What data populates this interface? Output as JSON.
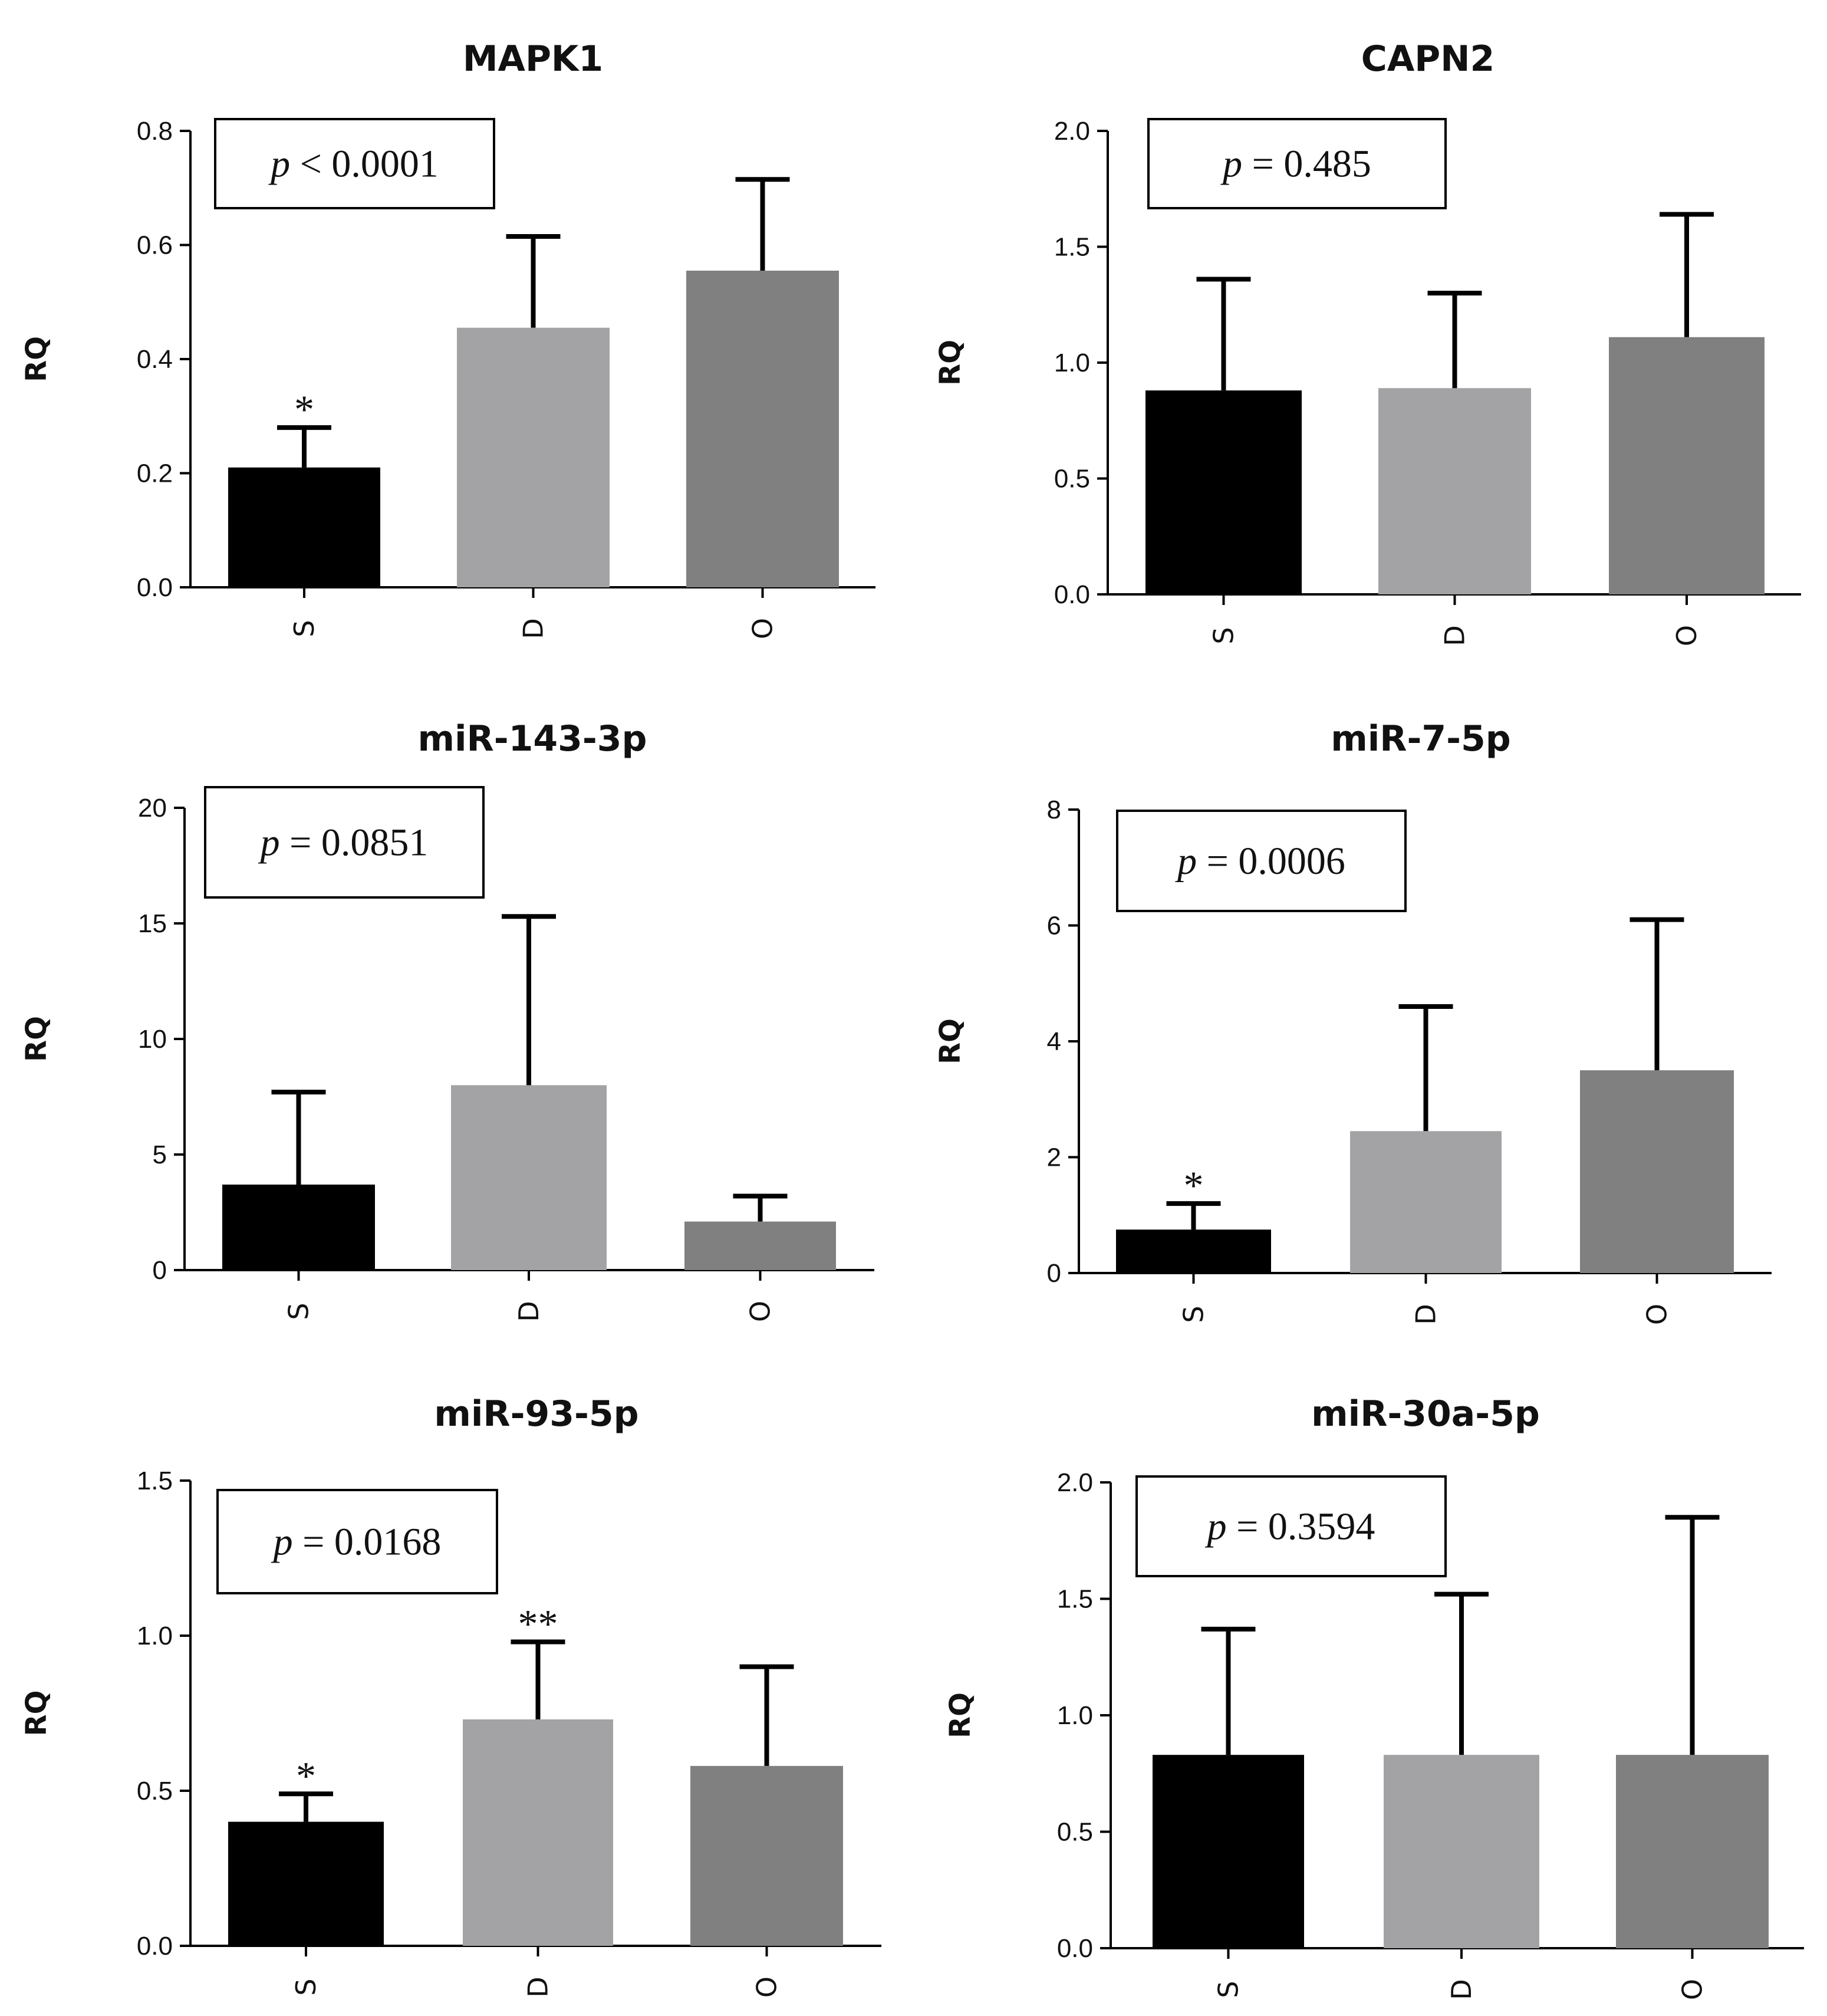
{
  "figure": {
    "y_axis_label": "RQ",
    "bar_colors": [
      "#000000",
      "#a3a3a6",
      "#808080"
    ]
  },
  "chart_data": [
    {
      "type": "bar",
      "title": "MAPK1",
      "categories": [
        "S",
        "D",
        "O"
      ],
      "values": [
        0.21,
        0.455,
        0.555
      ],
      "error_upper": [
        0.28,
        0.615,
        0.715
      ],
      "significance": [
        "*",
        "",
        ""
      ],
      "p_value": {
        "symbol": "p",
        "text": " < 0.0001"
      },
      "ylabel": "RQ",
      "ylim": [
        0,
        0.8
      ],
      "yticks": [
        "0.0",
        "0.2",
        "0.4",
        "0.6",
        "0.8"
      ]
    },
    {
      "type": "bar",
      "title": "CAPN2",
      "categories": [
        "S",
        "D",
        "O"
      ],
      "values": [
        0.88,
        0.89,
        1.11
      ],
      "error_upper": [
        1.36,
        1.3,
        1.64
      ],
      "significance": [
        "",
        "",
        ""
      ],
      "p_value": {
        "symbol": "p",
        "text": " = 0.485"
      },
      "ylabel": "RQ",
      "ylim": [
        0,
        2.0
      ],
      "yticks": [
        "0.0",
        "0.5",
        "1.0",
        "1.5",
        "2.0"
      ]
    },
    {
      "type": "bar",
      "title": "miR-143-3p",
      "categories": [
        "S",
        "D",
        "O"
      ],
      "values": [
        3.7,
        8.0,
        2.1
      ],
      "error_upper": [
        7.7,
        15.3,
        3.2
      ],
      "significance": [
        "",
        "",
        ""
      ],
      "p_value": {
        "symbol": "p",
        "text": " = 0.0851"
      },
      "ylabel": "RQ",
      "ylim": [
        0,
        20
      ],
      "yticks": [
        "0",
        "5",
        "10",
        "15",
        "20"
      ]
    },
    {
      "type": "bar",
      "title": "miR-7-5p",
      "categories": [
        "S",
        "D",
        "O"
      ],
      "values": [
        0.75,
        2.45,
        3.5
      ],
      "error_upper": [
        1.2,
        4.6,
        6.1
      ],
      "significance": [
        "*",
        "",
        ""
      ],
      "p_value": {
        "symbol": "p",
        "text": " = 0.0006"
      },
      "ylabel": "RQ",
      "ylim": [
        0,
        8
      ],
      "yticks": [
        "0",
        "2",
        "4",
        "6",
        "8"
      ]
    },
    {
      "type": "bar",
      "title": "miR-93-5p",
      "categories": [
        "S",
        "D",
        "O"
      ],
      "values": [
        0.4,
        0.73,
        0.58
      ],
      "error_upper": [
        0.49,
        0.98,
        0.9
      ],
      "significance": [
        "*",
        "**",
        ""
      ],
      "p_value": {
        "symbol": "p",
        "text": " = 0.0168"
      },
      "ylabel": "RQ",
      "ylim": [
        0,
        1.5
      ],
      "yticks": [
        "0.0",
        "0.5",
        "1.0",
        "1.5"
      ]
    },
    {
      "type": "bar",
      "title": "miR-30a-5p",
      "categories": [
        "S",
        "D",
        "O"
      ],
      "values": [
        0.83,
        0.83,
        0.83
      ],
      "error_upper": [
        1.37,
        1.52,
        1.85
      ],
      "significance": [
        "",
        "",
        ""
      ],
      "p_value": {
        "symbol": "p",
        "text": " = 0.3594"
      },
      "ylabel": "RQ",
      "ylim": [
        0,
        2.0
      ],
      "yticks": [
        "0.0",
        "0.5",
        "1.0",
        "1.5",
        "2.0"
      ]
    }
  ]
}
